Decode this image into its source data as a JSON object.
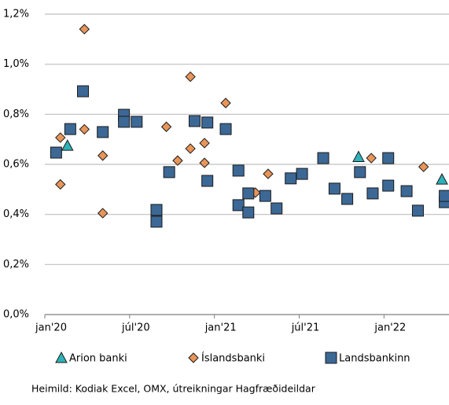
{
  "chart_data": {
    "type": "scatter",
    "source": "Heimild: Kodiak Excel, OMX, útreikningar Hagfræðideildar",
    "xlim": [
      0,
      28.6
    ],
    "xticks": [
      {
        "value": 0,
        "label": "jan'20"
      },
      {
        "value": 6,
        "label": "júl'20"
      },
      {
        "value": 12,
        "label": "jan'21"
      },
      {
        "value": 18,
        "label": "júl'21"
      },
      {
        "value": 24,
        "label": "jan'22"
      }
    ],
    "ylim": [
      0,
      1.2
    ],
    "yticks": [
      {
        "value": 0,
        "label": "0,0%"
      },
      {
        "value": 0.2,
        "label": "0,2%"
      },
      {
        "value": 0.4,
        "label": "0,4%"
      },
      {
        "value": 0.6,
        "label": "0,6%"
      },
      {
        "value": 0.8,
        "label": "0,8%"
      },
      {
        "value": 1.0,
        "label": "1,0%"
      },
      {
        "value": 1.2,
        "label": "1,2%"
      }
    ],
    "grid": true,
    "series": [
      {
        "name": "Arion banki",
        "color": "#2fb1b8",
        "marker": "triangle",
        "x": [
          1.6,
          22.2,
          28.1
        ],
        "values": [
          0.675,
          0.63,
          0.54
        ]
      },
      {
        "name": "Íslandsbanki",
        "color": "#e8955a",
        "marker": "diamond",
        "x": [
          1.1,
          1.1,
          2.8,
          2.8,
          4.1,
          4.1,
          8.6,
          9.4,
          10.3,
          10.3,
          11.3,
          11.3,
          12.8,
          14.9,
          15.8,
          23.1,
          26.8,
          28.3
        ],
        "values": [
          0.707,
          0.52,
          1.14,
          0.74,
          0.635,
          0.405,
          0.75,
          0.615,
          0.95,
          0.663,
          0.685,
          0.606,
          0.845,
          0.487,
          0.562,
          0.625,
          0.59,
          0.468
        ]
      },
      {
        "name": "Landsbankinn",
        "color": "#3c6896",
        "marker": "square",
        "x": [
          0.8,
          1.8,
          2.7,
          4.1,
          5.6,
          5.6,
          6.5,
          7.9,
          7.9,
          8.8,
          10.6,
          11.5,
          11.5,
          12.8,
          13.7,
          13.7,
          14.4,
          14.4,
          15.6,
          16.4,
          17.4,
          18.2,
          19.7,
          20.5,
          21.4,
          22.3,
          23.2,
          24.3,
          24.3,
          25.6,
          26.4,
          28.3,
          28.3
        ],
        "values": [
          0.647,
          0.741,
          0.892,
          0.729,
          0.798,
          0.77,
          0.77,
          0.418,
          0.371,
          0.569,
          0.773,
          0.767,
          0.534,
          0.741,
          0.575,
          0.437,
          0.484,
          0.408,
          0.474,
          0.424,
          0.544,
          0.562,
          0.625,
          0.503,
          0.462,
          0.569,
          0.484,
          0.625,
          0.515,
          0.493,
          0.415,
          0.449,
          0.474
        ]
      }
    ]
  }
}
